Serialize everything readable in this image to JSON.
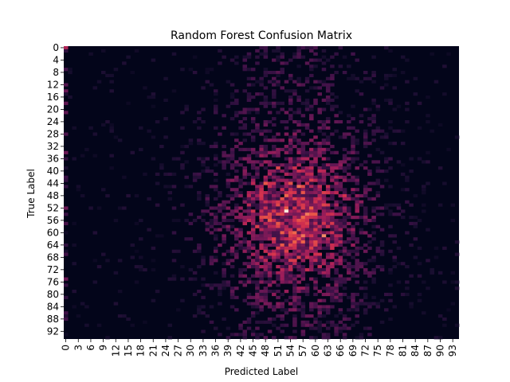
{
  "chart_data": {
    "type": "heatmap",
    "title": "Random Forest Confusion Matrix",
    "xlabel": "Predicted Label",
    "ylabel": "True Label",
    "n_classes": 95,
    "x_tick_labels": [
      "0",
      "3",
      "6",
      "9",
      "12",
      "15",
      "18",
      "21",
      "24",
      "27",
      "30",
      "33",
      "36",
      "39",
      "42",
      "45",
      "48",
      "51",
      "54",
      "57",
      "60",
      "63",
      "66",
      "69",
      "72",
      "75",
      "78",
      "81",
      "84",
      "87",
      "90",
      "93"
    ],
    "y_tick_labels": [
      "0",
      "4",
      "8",
      "12",
      "16",
      "20",
      "24",
      "28",
      "32",
      "36",
      "40",
      "44",
      "48",
      "52",
      "56",
      "60",
      "64",
      "68",
      "72",
      "76",
      "80",
      "84",
      "88",
      "92"
    ],
    "x_tick_step": 3,
    "y_tick_step": 4,
    "colorbar": false,
    "grid": false,
    "colormap": "rocket",
    "description_of_values": "Counts concentrated around predicted/true classes 40-70; sparse elsewhere.",
    "hotspots": [
      {
        "true": 53,
        "pred": 53,
        "value": 1.0
      },
      {
        "true": 61,
        "pred": 62,
        "value": 0.9
      },
      {
        "true": 45,
        "pred": 56,
        "value": 0.85
      },
      {
        "true": 44,
        "pred": 48,
        "value": 0.8
      },
      {
        "true": 49,
        "pred": 52,
        "value": 0.78
      },
      {
        "true": 39,
        "pred": 51,
        "value": 0.75
      },
      {
        "true": 57,
        "pred": 64,
        "value": 0.72
      },
      {
        "true": 48,
        "pred": 67,
        "value": 0.7
      },
      {
        "true": 55,
        "pred": 59,
        "value": 0.68
      },
      {
        "true": 0,
        "pred": 0,
        "value": 0.6
      }
    ]
  }
}
